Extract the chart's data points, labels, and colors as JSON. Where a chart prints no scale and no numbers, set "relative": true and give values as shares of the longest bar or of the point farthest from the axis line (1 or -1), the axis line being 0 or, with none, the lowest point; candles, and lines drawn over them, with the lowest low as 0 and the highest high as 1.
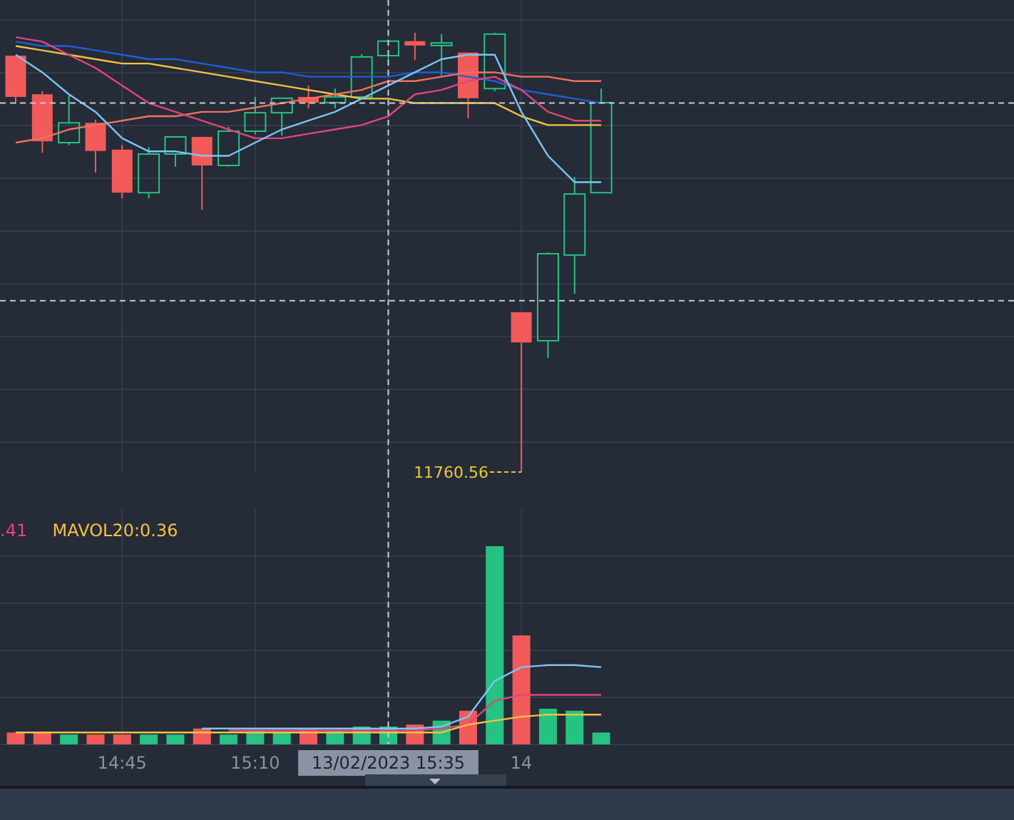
{
  "chart_data": [
    {
      "type": "candlestick",
      "relative": true,
      "grid": true,
      "tick_labels": false,
      "categories": [
        null,
        null,
        null,
        null,
        "14:45",
        null,
        null,
        null,
        null,
        "15:10",
        null,
        null,
        null,
        null,
        "13/02/2023 15:35",
        null,
        null,
        null,
        null,
        "14",
        null,
        null,
        null
      ],
      "ohlc": [
        [
          0.948,
          0.948,
          0.838,
          0.854
        ],
        [
          0.86,
          0.867,
          0.727,
          0.753
        ],
        [
          0.75,
          0.857,
          0.744,
          0.795
        ],
        [
          0.795,
          0.802,
          0.682,
          0.731
        ],
        [
          0.734,
          0.744,
          0.623,
          0.636
        ],
        [
          0.636,
          0.74,
          0.623,
          0.724
        ],
        [
          0.724,
          0.763,
          0.695,
          0.763
        ],
        [
          0.763,
          0.763,
          0.597,
          0.698
        ],
        [
          0.698,
          0.786,
          0.695,
          0.776
        ],
        [
          0.776,
          0.854,
          0.769,
          0.818
        ],
        [
          0.818,
          0.851,
          0.766,
          0.851
        ],
        [
          0.854,
          0.88,
          0.828,
          0.841
        ],
        [
          0.841,
          0.873,
          0.828,
          0.854
        ],
        [
          0.854,
          0.951,
          0.854,
          0.945
        ],
        [
          0.948,
          0.981,
          0.935,
          0.981
        ],
        [
          0.981,
          1,
          0.938,
          0.971
        ],
        [
          0.971,
          0.997,
          0.903,
          0.977
        ],
        [
          0.955,
          0.955,
          0.805,
          0.851
        ],
        [
          0.873,
          1,
          0.867,
          0.997
        ],
        [
          0.364,
          0.364,
          0,
          0.295
        ],
        [
          0.299,
          0.5,
          0.26,
          0.497
        ],
        [
          0.494,
          0.672,
          0.406,
          0.633
        ],
        [
          0.636,
          0.873,
          0.636,
          0.841
        ]
      ],
      "colors": [
        "#f25a5a",
        "#f25a5a",
        "#26c281",
        "#f25a5a",
        "#f25a5a",
        "#26c281",
        "#26c281",
        "#f25a5a",
        "#26c281",
        "#26c281",
        "#26c281",
        "#f25a5a",
        "#26c281",
        "#26c281",
        "#26c281",
        "#f25a5a",
        "#26c281",
        "#f25a5a",
        "#26c281",
        "#f25a5a",
        "#26c281",
        "#26c281",
        "#26c281"
      ],
      "series": [
        {
          "type": "line",
          "color": "#1e5fd6",
          "values": [
            0.98,
            0.97,
            0.97,
            0.96,
            0.95,
            0.94,
            0.94,
            0.93,
            0.92,
            0.91,
            0.91,
            0.9,
            0.9,
            0.9,
            0.9,
            0.91,
            0.91,
            0.9,
            0.89,
            0.87,
            0.86,
            0.85,
            0.84
          ]
        },
        {
          "type": "line",
          "color": "#f5c242",
          "values": [
            0.97,
            0.96,
            0.95,
            0.94,
            0.93,
            0.93,
            0.92,
            0.91,
            0.9,
            0.89,
            0.88,
            0.87,
            0.86,
            0.85,
            0.85,
            0.84,
            0.84,
            0.84,
            0.84,
            0.81,
            0.79,
            0.79,
            0.79
          ]
        },
        {
          "type": "line",
          "color": "#f07062",
          "values": [
            0.75,
            0.76,
            0.78,
            0.79,
            0.8,
            0.81,
            0.81,
            0.82,
            0.82,
            0.83,
            0.84,
            0.85,
            0.86,
            0.87,
            0.89,
            0.89,
            0.9,
            0.91,
            0.91,
            0.9,
            0.9,
            0.89,
            0.89
          ]
        },
        {
          "type": "line",
          "color": "#e0457b",
          "values": [
            0.99,
            0.98,
            0.95,
            0.92,
            0.88,
            0.84,
            0.82,
            0.8,
            0.78,
            0.76,
            0.76,
            0.77,
            0.78,
            0.79,
            0.81,
            0.86,
            0.87,
            0.89,
            0.9,
            0.87,
            0.82,
            0.8,
            0.8
          ]
        },
        {
          "type": "line",
          "color": "#7cc6f0",
          "values": [
            0.95,
            0.91,
            0.86,
            0.82,
            0.76,
            0.73,
            0.73,
            0.72,
            0.72,
            0.75,
            0.78,
            0.8,
            0.82,
            0.85,
            0.88,
            0.91,
            0.94,
            0.95,
            0.95,
            0.82,
            0.72,
            0.66,
            0.66
          ]
        }
      ],
      "ref_lines": [
        {
          "axis": "y",
          "value": 0.84,
          "color": "#c8ccd4",
          "line_style": "dashed"
        },
        {
          "axis": "y",
          "value": 0.39,
          "color": "#c8ccd4",
          "line_style": "dashed"
        },
        {
          "axis": "x",
          "value": "13/02/2023 15:35",
          "color": "#c8ccd4",
          "line_style": "dashed"
        }
      ],
      "annotations": [
        "11760.56"
      ]
    },
    {
      "type": "bar",
      "relative": true,
      "grid": true,
      "legend": "top left",
      "categories": [
        null,
        null,
        null,
        null,
        "14:45",
        null,
        null,
        null,
        null,
        "15:10",
        null,
        null,
        null,
        null,
        "13/02/2023 15:35",
        null,
        null,
        null,
        null,
        "14",
        null,
        null,
        null
      ],
      "series": [
        {
          "type": "bar",
          "values": [
            0.06,
            0.06,
            0.05,
            0.05,
            0.05,
            0.05,
            0.05,
            0.08,
            0.05,
            0.07,
            0.06,
            0.08,
            0.07,
            0.09,
            0.09,
            0.1,
            0.12,
            0.17,
            1,
            0.55,
            0.18,
            0.17,
            0.06
          ],
          "colors": [
            "#f25a5a",
            "#f25a5a",
            "#26c281",
            "#f25a5a",
            "#f25a5a",
            "#26c281",
            "#26c281",
            "#f25a5a",
            "#26c281",
            "#26c281",
            "#26c281",
            "#f25a5a",
            "#26c281",
            "#26c281",
            "#26c281",
            "#f25a5a",
            "#26c281",
            "#f25a5a",
            "#26c281",
            "#f25a5a",
            "#26c281",
            "#26c281",
            "#26c281"
          ]
        },
        {
          "type": "line",
          "color": "#7cc6f0",
          "values": [
            null,
            null,
            null,
            null,
            null,
            null,
            null,
            0.08,
            0.08,
            0.08,
            0.08,
            0.08,
            0.08,
            0.08,
            0.08,
            0.08,
            0.09,
            0.14,
            0.32,
            0.39,
            0.4,
            0.4,
            0.39
          ]
        },
        {
          "type": "line",
          "name": ".41",
          "color": "#e0457b",
          "values": [
            null,
            null,
            null,
            null,
            null,
            null,
            null,
            null,
            0.07,
            0.07,
            0.07,
            0.07,
            0.07,
            0.07,
            0.07,
            0.07,
            0.08,
            0.1,
            0.22,
            0.25,
            0.25,
            0.25,
            0.25
          ]
        },
        {
          "type": "line",
          "name": "MAVOL20:0.36",
          "color": "#f5c242",
          "values": [
            0.06,
            0.06,
            0.06,
            0.06,
            0.06,
            0.06,
            0.06,
            0.06,
            0.06,
            0.06,
            0.06,
            0.06,
            0.06,
            0.06,
            0.06,
            0.06,
            0.06,
            0.1,
            0.12,
            0.14,
            0.15,
            0.15,
            0.15
          ]
        }
      ],
      "ref_lines": [
        {
          "axis": "x",
          "value": "13/02/2023 15:35",
          "color": "#c8ccd4",
          "line_style": "dashed"
        }
      ]
    }
  ]
}
